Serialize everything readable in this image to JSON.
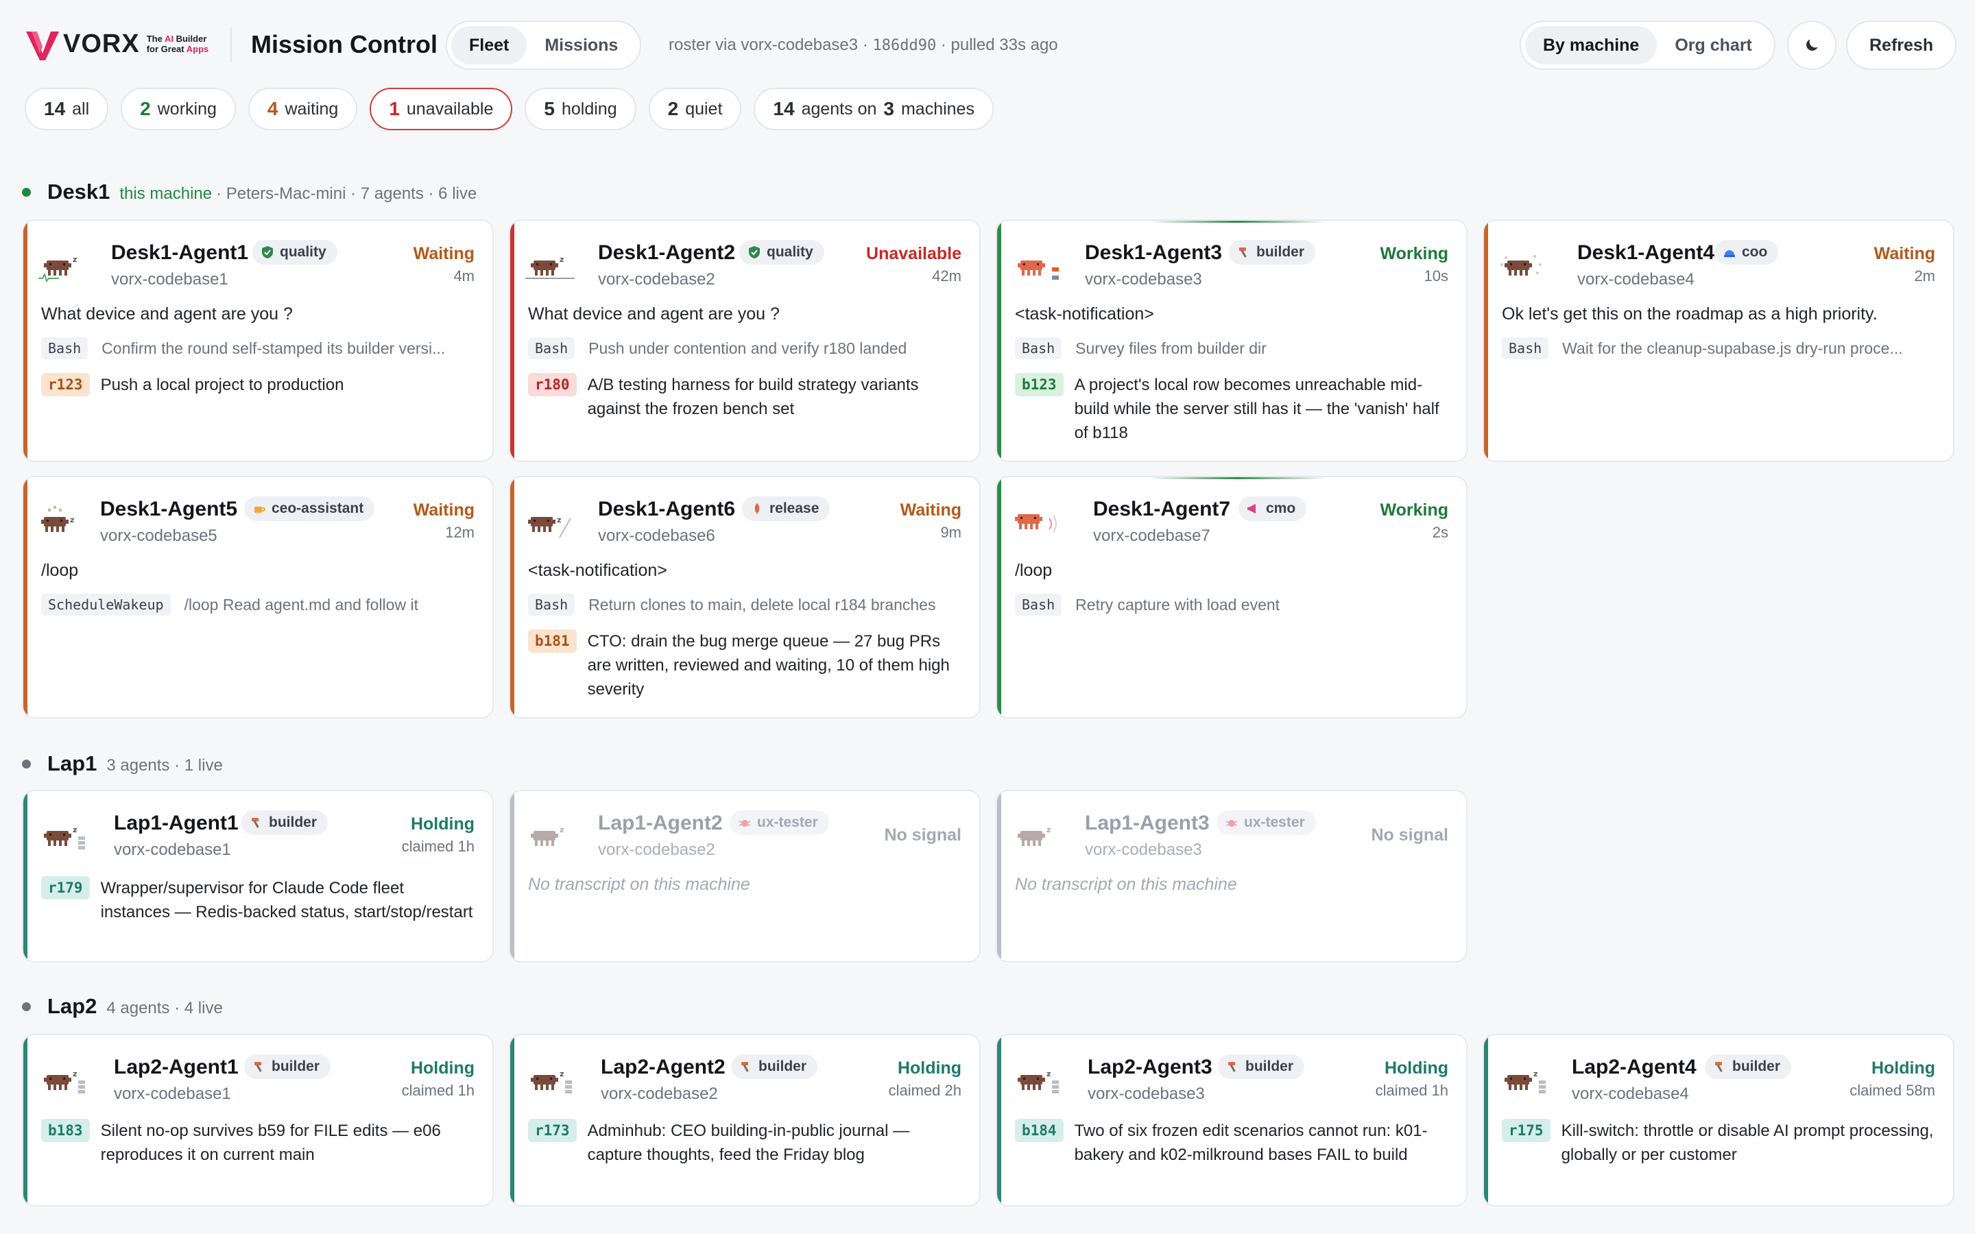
{
  "header": {
    "logo_word": "VORX",
    "logo_tag_line1": "The",
    "logo_tag_ai": "AI",
    "logo_tag_builder": "Builder",
    "logo_tag_line2": "for Great",
    "logo_tag_apps": "Apps",
    "app_title": "Mission Control",
    "view_tabs": [
      "Fleet",
      "Missions"
    ],
    "active_view": "Fleet",
    "roster_prefix": "roster via vorx-codebase3 ·",
    "roster_hash": "186dd90",
    "roster_suffix": "· pulled 33s ago",
    "layout_tabs": [
      "By machine",
      "Org chart"
    ],
    "active_layout": "By machine",
    "theme_icon": "moon-icon",
    "refresh_label": "Refresh"
  },
  "filters": [
    {
      "count": "14",
      "label": "all"
    },
    {
      "count": "2",
      "label": "working"
    },
    {
      "count": "4",
      "label": "waiting"
    },
    {
      "count": "1",
      "label": "unavailable"
    },
    {
      "count": "5",
      "label": "holding"
    },
    {
      "count": "2",
      "label": "quiet"
    }
  ],
  "summary": {
    "agents": "14",
    "agents_label": "agents on",
    "machines": "3",
    "machines_label": "machines"
  },
  "machines": [
    {
      "name": "Desk1",
      "this_machine": "this machine",
      "meta": "· Peters-Mac-mini · 7 agents · 6 live",
      "dot_color": "#1e8a3e"
    },
    {
      "name": "Lap1",
      "meta": "3 agents · 1 live",
      "dot_color": "#6b7280"
    },
    {
      "name": "Lap2",
      "meta": "4 agents · 4 live",
      "dot_color": "#6b7280"
    }
  ],
  "cards": {
    "d1a1": {
      "name": "Desk1-Agent1",
      "role": "quality",
      "repo": "vorx-codebase1",
      "status": "Waiting",
      "age": "4m",
      "message": "What device and agent are you ?",
      "tool": "Bash",
      "tool_desc": "Confirm the round self-stamped its builder versi...",
      "task_id": "r123",
      "task_text": "Push a local project to production"
    },
    "d1a2": {
      "name": "Desk1-Agent2",
      "role": "quality",
      "repo": "vorx-codebase2",
      "status": "Unavailable",
      "age": "42m",
      "message": "What device and agent are you ?",
      "tool": "Bash",
      "tool_desc": "Push under contention and verify r180 landed",
      "task_id": "r180",
      "task_text": "A/B testing harness for build strategy variants against the frozen bench set"
    },
    "d1a3": {
      "name": "Desk1-Agent3",
      "role": "builder",
      "repo": "vorx-codebase3",
      "status": "Working",
      "age": "10s",
      "message": "<task-notification>",
      "tool": "Bash",
      "tool_desc": "Survey files from builder dir",
      "task_id": "b123",
      "task_text": "A project's local row becomes unreachable mid-build while the server still has it — the 'vanish' half of b118"
    },
    "d1a4": {
      "name": "Desk1-Agent4",
      "role": "coo",
      "repo": "vorx-codebase4",
      "status": "Waiting",
      "age": "2m",
      "message": "Ok let's get this on the roadmap as a high priority.",
      "tool": "Bash",
      "tool_desc": "Wait for the cleanup-supabase.js dry-run proce..."
    },
    "d1a5": {
      "name": "Desk1-Agent5",
      "role": "ceo-assistant",
      "repo": "vorx-codebase5",
      "status": "Waiting",
      "age": "12m",
      "message": "/loop",
      "tool": "ScheduleWakeup",
      "tool_desc": "/loop Read agent.md and follow it"
    },
    "d1a6": {
      "name": "Desk1-Agent6",
      "role": "release",
      "repo": "vorx-codebase6",
      "status": "Waiting",
      "age": "9m",
      "message": "<task-notification>",
      "tool": "Bash",
      "tool_desc": "Return clones to main, delete local r184 branches",
      "task_id": "b181",
      "task_text": "CTO: drain the bug merge queue — 27 bug PRs are written, reviewed and waiting, 10 of them high severity"
    },
    "d1a7": {
      "name": "Desk1-Agent7",
      "role": "cmo",
      "repo": "vorx-codebase7",
      "status": "Working",
      "age": "2s",
      "message": "/loop",
      "tool": "Bash",
      "tool_desc": "Retry capture with load event"
    },
    "l1a1": {
      "name": "Lap1-Agent1",
      "role": "builder",
      "repo": "vorx-codebase1",
      "status": "Holding",
      "age": "claimed 1h",
      "task_id": "r179",
      "task_text": "Wrapper/supervisor for Claude Code fleet instances — Redis-backed status, start/stop/restart"
    },
    "l1a2": {
      "name": "Lap1-Agent2",
      "role": "ux-tester",
      "repo": "vorx-codebase2",
      "status": "No signal",
      "empty": "No transcript on this machine"
    },
    "l1a3": {
      "name": "Lap1-Agent3",
      "role": "ux-tester",
      "repo": "vorx-codebase3",
      "status": "No signal",
      "empty": "No transcript on this machine"
    },
    "l2a1": {
      "name": "Lap2-Agent1",
      "role": "builder",
      "repo": "vorx-codebase1",
      "status": "Holding",
      "age": "claimed 1h",
      "task_id": "b183",
      "task_text": "Silent no-op survives b59 for FILE edits — e06 reproduces it on current main"
    },
    "l2a2": {
      "name": "Lap2-Agent2",
      "role": "builder",
      "repo": "vorx-codebase2",
      "status": "Holding",
      "age": "claimed 2h",
      "task_id": "r173",
      "task_text": "Adminhub: CEO building-in-public journal — capture thoughts, feed the Friday blog"
    },
    "l2a3": {
      "name": "Lap2-Agent3",
      "role": "builder",
      "repo": "vorx-codebase3",
      "status": "Holding",
      "age": "claimed 1h",
      "task_id": "b184",
      "task_text": "Two of six frozen edit scenarios cannot run: k01-bakery and k02-milkround bases FAIL to build"
    },
    "l2a4": {
      "name": "Lap2-Agent4",
      "role": "builder",
      "repo": "vorx-codebase4",
      "status": "Holding",
      "age": "claimed 58m",
      "task_id": "r175",
      "task_text": "Kill-switch: throttle or disable AI prompt processing, globally or per customer"
    }
  }
}
